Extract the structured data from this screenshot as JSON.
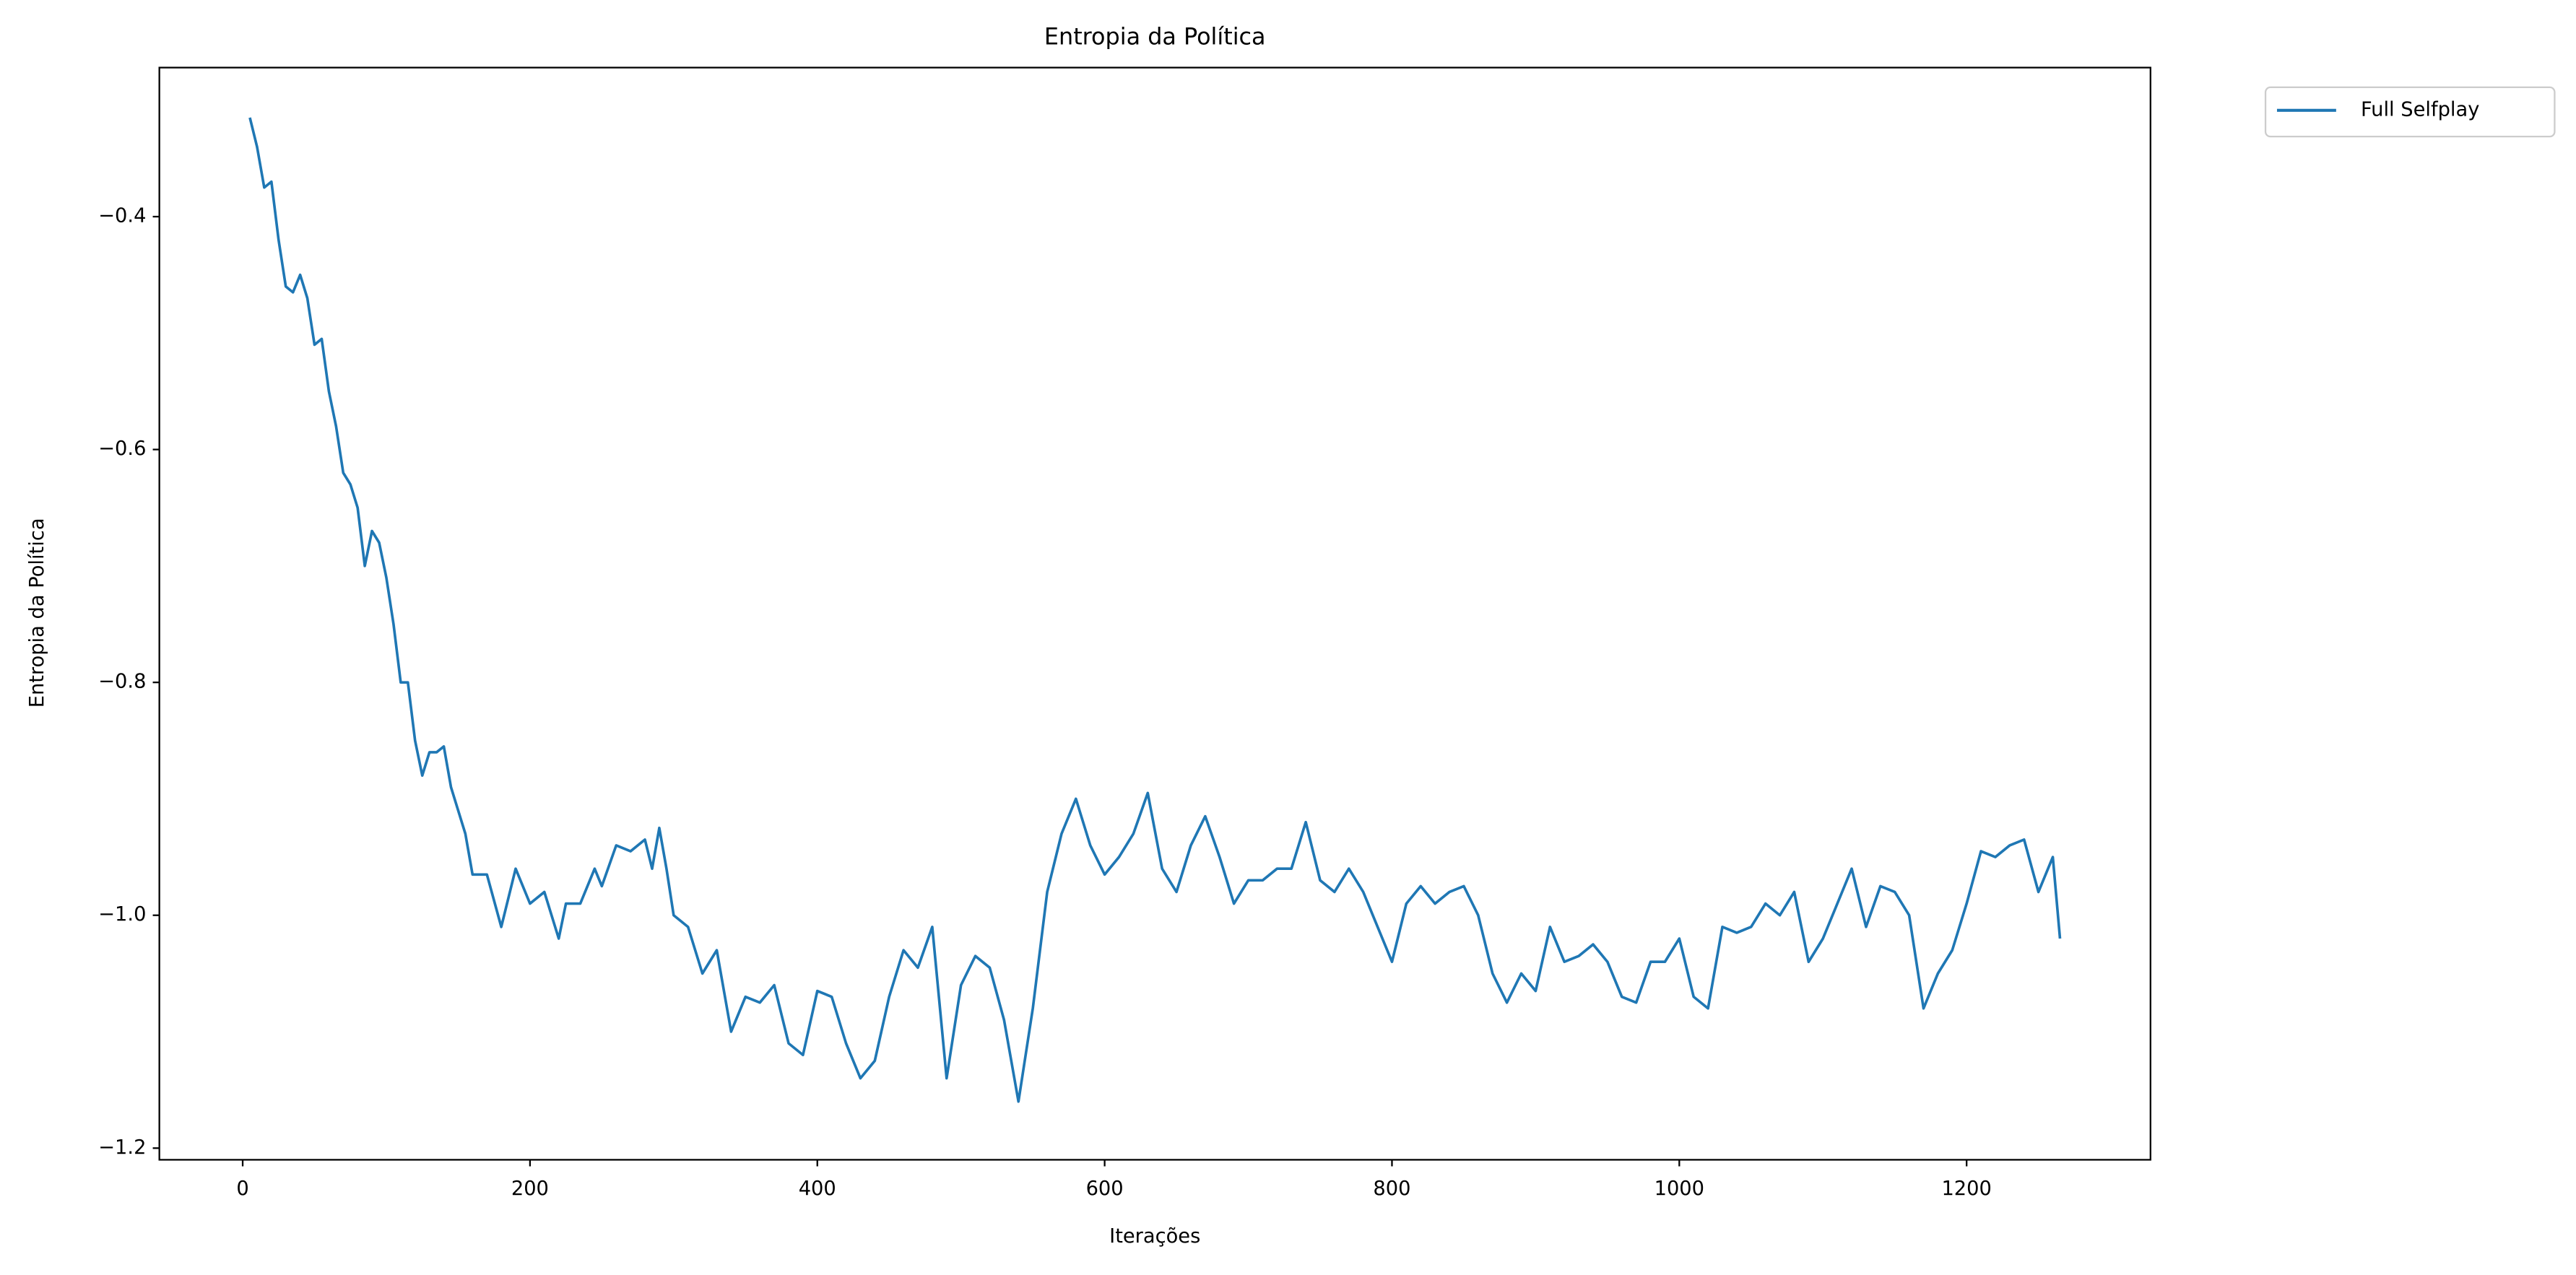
{
  "chart_data": {
    "type": "line",
    "title": "Entropia da Política",
    "xlabel": "Iterações",
    "ylabel": "Entropia da Política",
    "x": [
      5,
      10,
      15,
      20,
      25,
      30,
      35,
      40,
      45,
      50,
      55,
      60,
      65,
      70,
      75,
      80,
      85,
      90,
      95,
      100,
      105,
      110,
      115,
      120,
      125,
      130,
      135,
      140,
      145,
      150,
      155,
      160,
      170,
      180,
      190,
      200,
      210,
      220,
      225,
      235,
      245,
      250,
      260,
      270,
      280,
      285,
      290,
      295,
      300,
      310,
      320,
      330,
      340,
      350,
      360,
      370,
      380,
      390,
      400,
      410,
      420,
      430,
      440,
      450,
      460,
      470,
      480,
      490,
      500,
      510,
      520,
      530,
      540,
      550,
      560,
      570,
      580,
      590,
      600,
      610,
      620,
      630,
      640,
      650,
      660,
      670,
      680,
      690,
      700,
      710,
      720,
      730,
      740,
      750,
      760,
      770,
      780,
      790,
      800,
      810,
      820,
      830,
      840,
      850,
      860,
      870,
      880,
      890,
      900,
      910,
      920,
      930,
      940,
      950,
      960,
      970,
      980,
      990,
      1000,
      1010,
      1020,
      1030,
      1040,
      1050,
      1060,
      1070,
      1080,
      1090,
      1100,
      1110,
      1120,
      1130,
      1140,
      1150,
      1160,
      1170,
      1180,
      1190,
      1200,
      1210,
      1220,
      1230,
      1240,
      1250,
      1260,
      1265
    ],
    "series": [
      {
        "name": "Full Selfplay",
        "color": "#1f77b4",
        "values": [
          -0.315,
          -0.34,
          -0.375,
          -0.37,
          -0.42,
          -0.46,
          -0.465,
          -0.45,
          -0.47,
          -0.51,
          -0.505,
          -0.55,
          -0.58,
          -0.62,
          -0.63,
          -0.65,
          -0.7,
          -0.67,
          -0.68,
          -0.71,
          -0.75,
          -0.8,
          -0.8,
          -0.85,
          -0.88,
          -0.86,
          -0.86,
          -0.855,
          -0.89,
          -0.91,
          -0.93,
          -0.965,
          -0.965,
          -1.01,
          -0.96,
          -0.99,
          -0.98,
          -1.02,
          -0.99,
          -0.99,
          -0.96,
          -0.975,
          -0.94,
          -0.945,
          -0.935,
          -0.96,
          -0.925,
          -0.96,
          -1.0,
          -1.01,
          -1.05,
          -1.03,
          -1.1,
          -1.07,
          -1.075,
          -1.06,
          -1.11,
          -1.12,
          -1.065,
          -1.07,
          -1.11,
          -1.14,
          -1.125,
          -1.07,
          -1.03,
          -1.045,
          -1.01,
          -1.14,
          -1.06,
          -1.035,
          -1.045,
          -1.09,
          -1.16,
          -1.08,
          -0.98,
          -0.93,
          -0.9,
          -0.94,
          -0.965,
          -0.95,
          -0.93,
          -0.895,
          -0.96,
          -0.98,
          -0.94,
          -0.915,
          -0.95,
          -0.99,
          -0.97,
          -0.97,
          -0.96,
          -0.96,
          -0.92,
          -0.97,
          -0.98,
          -0.96,
          -0.98,
          -1.01,
          -1.04,
          -0.99,
          -0.975,
          -0.99,
          -0.98,
          -0.975,
          -1.0,
          -1.05,
          -1.075,
          -1.05,
          -1.065,
          -1.01,
          -1.04,
          -1.035,
          -1.025,
          -1.04,
          -1.07,
          -1.075,
          -1.04,
          -1.04,
          -1.02,
          -1.07,
          -1.08,
          -1.01,
          -1.015,
          -1.01,
          -0.99,
          -1.0,
          -0.98,
          -1.04,
          -1.02,
          -0.99,
          -0.96,
          -1.01,
          -0.975,
          -0.98,
          -1.0,
          -1.08,
          -1.05,
          -1.03,
          -0.99,
          -0.945,
          -0.95,
          -0.94,
          -0.935,
          -0.98,
          -0.95,
          -1.02
        ]
      }
    ],
    "xlim": [
      -58,
      1328
    ],
    "ylim": [
      -1.21,
      -0.272
    ],
    "xticks": [
      0,
      200,
      400,
      600,
      800,
      1000,
      1200
    ],
    "yticks": [
      {
        "value": -1.2,
        "label": "−1.2"
      },
      {
        "value": -1.0,
        "label": "−1.0"
      },
      {
        "value": -0.8,
        "label": "−0.8"
      },
      {
        "value": -0.6,
        "label": "−0.6"
      },
      {
        "value": -0.4,
        "label": "−0.4"
      }
    ],
    "grid": false,
    "legend": "outside upper right"
  }
}
